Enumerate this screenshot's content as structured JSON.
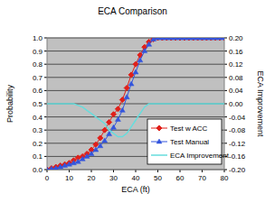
{
  "chart_data": {
    "type": "line",
    "title": "ECA Comparison",
    "x_label": "ECA (ft)",
    "y_label": "Probability",
    "y2_label": "ECA Improvement",
    "x": [
      0,
      2,
      4,
      6,
      8,
      10,
      12,
      14,
      16,
      18,
      20,
      22,
      24,
      26,
      28,
      30,
      32,
      34,
      36,
      38,
      40,
      42,
      44,
      46,
      48,
      50,
      52,
      54,
      56,
      58,
      60,
      62,
      64,
      66,
      68,
      70,
      72,
      74,
      76,
      78,
      80
    ],
    "series": [
      {
        "name": "Test w ACC",
        "color": "#e0201a",
        "marker": "diamond",
        "line_style": "solid",
        "values": [
          0,
          0.01,
          0.02,
          0.03,
          0.04,
          0.05,
          0.07,
          0.09,
          0.1,
          0.12,
          0.15,
          0.19,
          0.24,
          0.3,
          0.36,
          0.42,
          0.46,
          0.53,
          0.62,
          0.72,
          0.8,
          0.87,
          0.93,
          0.97,
          0.99,
          1,
          1,
          1,
          1,
          1,
          1,
          1,
          1,
          1,
          1,
          1,
          1,
          1,
          1,
          1,
          1
        ]
      },
      {
        "name": "Test Manual",
        "color": "#3355dd",
        "marker": "triangle",
        "line_style": "solid",
        "values": [
          0,
          0.005,
          0.01,
          0.02,
          0.03,
          0.04,
          0.05,
          0.06,
          0.08,
          0.1,
          0.12,
          0.15,
          0.18,
          0.22,
          0.27,
          0.32,
          0.38,
          0.45,
          0.55,
          0.65,
          0.74,
          0.83,
          0.9,
          0.95,
          0.99,
          1,
          1,
          1,
          1,
          1,
          1,
          1,
          1,
          1,
          1,
          1,
          1,
          1,
          1,
          1,
          1
        ]
      },
      {
        "name": "ECA Improvement",
        "color": "#66dddd",
        "marker": "none",
        "line_style": "solid",
        "axis": "y2",
        "values": [
          0,
          0,
          0,
          0,
          0,
          0,
          0,
          -0.005,
          -0.01,
          -0.02,
          -0.03,
          -0.04,
          -0.05,
          -0.06,
          -0.08,
          -0.09,
          -0.1,
          -0.1,
          -0.09,
          -0.07,
          -0.05,
          -0.03,
          -0.01,
          0,
          0,
          0,
          0,
          0,
          0,
          0,
          0,
          0,
          0,
          0,
          0,
          0,
          0,
          0,
          0,
          0,
          0
        ]
      }
    ],
    "xlim": [
      0,
      80
    ],
    "xticks": [
      0,
      10,
      20,
      30,
      40,
      50,
      60,
      70,
      80
    ],
    "ylim": [
      0,
      1
    ],
    "yticks": [
      {
        "value": 0,
        "label": "0.0"
      },
      0.1,
      0.2,
      0.3,
      0.4,
      0.5,
      0.6,
      0.7,
      0.8,
      0.9,
      {
        "value": 1,
        "label": "1.0"
      }
    ],
    "y2lim": [
      -0.2,
      0.2
    ],
    "y2ticks": [
      {
        "value": -0.2,
        "label": "-0.20"
      },
      -0.16,
      -0.12,
      -0.08,
      -0.04,
      {
        "value": 0,
        "label": "0.00"
      },
      0.04,
      0.08,
      0.12,
      0.16,
      {
        "value": 0.2,
        "label": "0.20"
      }
    ],
    "grid": true,
    "legend": "lower right"
  }
}
